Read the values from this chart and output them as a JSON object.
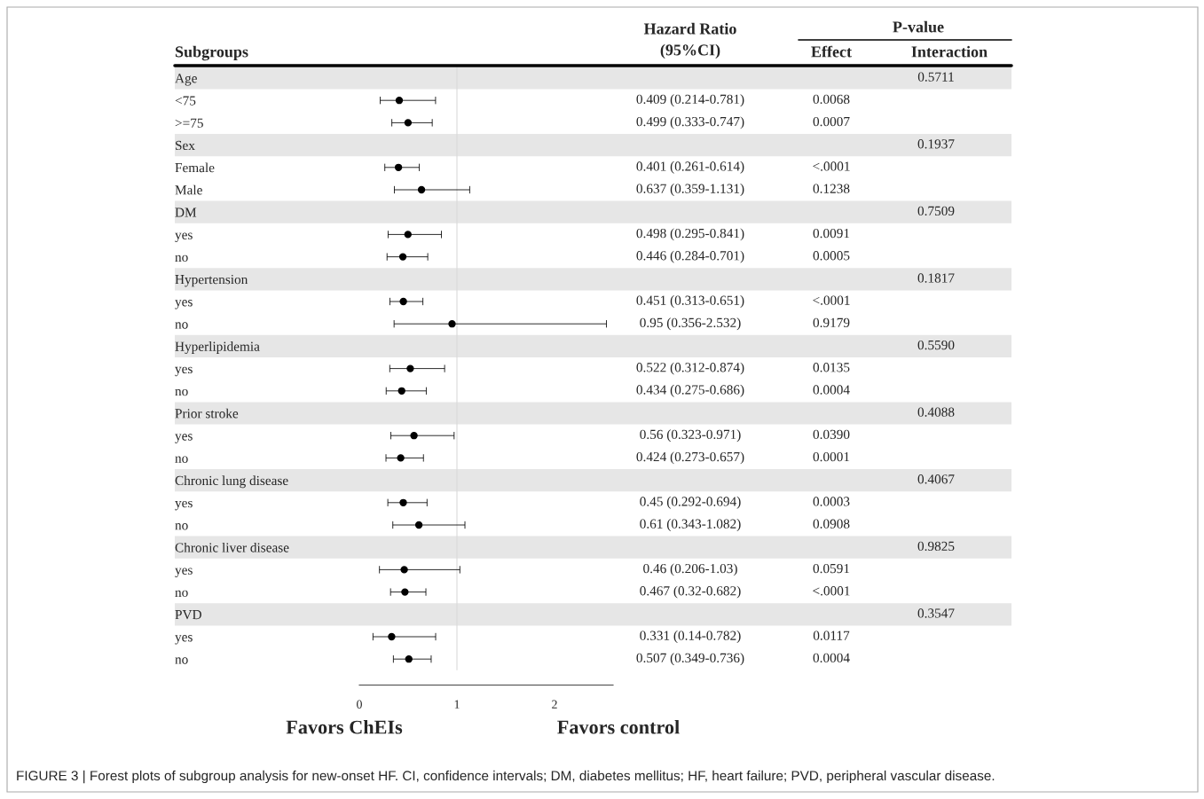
{
  "chart_data": {
    "type": "scatter",
    "ylabel": "Subgroups",
    "categories": [
      "Age",
      "<75",
      ">=75",
      "Sex",
      "Female",
      "Male",
      "DM",
      "yes",
      "no",
      "Hypertension",
      "yes",
      "no",
      "Hyperlipidemia",
      "yes",
      "no",
      "Prior stroke",
      "yes",
      "no",
      "Chronic lung disease",
      "yes",
      "no",
      "Chronic liver disease",
      "yes",
      "no",
      "PVD",
      "yes",
      "no"
    ],
    "series": [
      {
        "name": "Hazard Ratio\n(95%CI)",
        "color": "#000000",
        "values": [
          null,
          0.409,
          0.499,
          null,
          0.401,
          0.637,
          null,
          0.498,
          0.446,
          null,
          0.451,
          0.95,
          null,
          0.522,
          0.434,
          null,
          0.56,
          0.424,
          null,
          0.45,
          0.61,
          null,
          0.46,
          0.467,
          null,
          0.331,
          0.507
        ],
        "errors": [
          null,
          [
            0.214,
            0.781
          ],
          [
            0.333,
            0.747
          ],
          null,
          [
            0.261,
            0.614
          ],
          [
            0.359,
            1.131
          ],
          null,
          [
            0.295,
            0.841
          ],
          [
            0.284,
            0.701
          ],
          null,
          [
            0.313,
            0.651
          ],
          [
            0.356,
            2.532
          ],
          null,
          [
            0.312,
            0.874
          ],
          [
            0.275,
            0.686
          ],
          null,
          [
            0.323,
            0.971
          ],
          [
            0.273,
            0.657
          ],
          null,
          [
            0.292,
            0.694
          ],
          [
            0.343,
            1.082
          ],
          null,
          [
            0.206,
            1.03
          ],
          [
            0.32,
            0.682
          ],
          null,
          [
            0.14,
            0.782
          ],
          [
            0.349,
            0.736
          ]
        ],
        "value_labels": [
          null,
          "0.409 (0.214-0.781)",
          "0.499 (0.333-0.747)",
          null,
          "0.401 (0.261-0.614)",
          "0.637 (0.359-1.131)",
          null,
          "0.498 (0.295-0.841)",
          "0.446 (0.284-0.701)",
          null,
          "0.451 (0.313-0.651)",
          "0.95 (0.356-2.532)",
          null,
          "0.522 (0.312-0.874)",
          "0.434 (0.275-0.686)",
          null,
          "0.56 (0.323-0.971)",
          "0.424 (0.273-0.657)",
          null,
          "0.45 (0.292-0.694)",
          "0.61 (0.343-1.082)",
          null,
          "0.46 (0.206-1.03)",
          "0.467 (0.32-0.682)",
          null,
          "0.331 (0.14-0.782)",
          "0.507 (0.349-0.736)"
        ]
      },
      {
        "name": "Effect",
        "values": [
          null,
          null,
          null,
          null,
          null,
          null,
          null,
          null,
          null,
          null,
          null,
          null,
          null,
          null,
          null,
          null,
          null,
          null,
          null,
          null,
          null,
          null,
          null,
          null,
          null,
          null,
          null
        ],
        "value_labels": [
          null,
          "0.0068",
          "0.0007",
          null,
          "<.0001",
          "0.1238",
          null,
          "0.0091",
          "0.0005",
          null,
          "<.0001",
          "0.9179",
          null,
          "0.0135",
          "0.0004",
          null,
          "0.0390",
          "0.0001",
          null,
          "0.0003",
          "0.0908",
          null,
          "0.0591",
          "<.0001",
          null,
          "0.0117",
          "0.0004"
        ]
      },
      {
        "name": "Interaction",
        "values": [
          null,
          null,
          null,
          null,
          null,
          null,
          null,
          null,
          null,
          null,
          null,
          null,
          null,
          null,
          null,
          null,
          null,
          null,
          null,
          null,
          null,
          null,
          null,
          null,
          null,
          null,
          null
        ],
        "value_labels": [
          "0.5711",
          null,
          null,
          "0.1937",
          null,
          null,
          "0.7509",
          null,
          null,
          "0.1817",
          null,
          null,
          "0.5590",
          null,
          null,
          "0.4088",
          null,
          null,
          "0.4067",
          null,
          null,
          "0.9825",
          null,
          null,
          "0.3547",
          null,
          null
        ]
      }
    ],
    "marker": "circle",
    "orientation": "horizontal",
    "xlim": [
      0,
      2.6
    ],
    "xticks": [
      0,
      1,
      2
    ],
    "ref_lines": [
      {
        "axis": "x",
        "value": 1,
        "color": "#d9d9d9"
      }
    ],
    "annotations": [
      "P-value",
      "Favors ChEIs",
      "Favors control",
      "FIGURE 3 | Forest plots of subgroup analysis for new-onset HF. CI, confidence intervals; DM, diabetes mellitus; HF, heart failure; PVD, peripheral vascular disease."
    ]
  }
}
